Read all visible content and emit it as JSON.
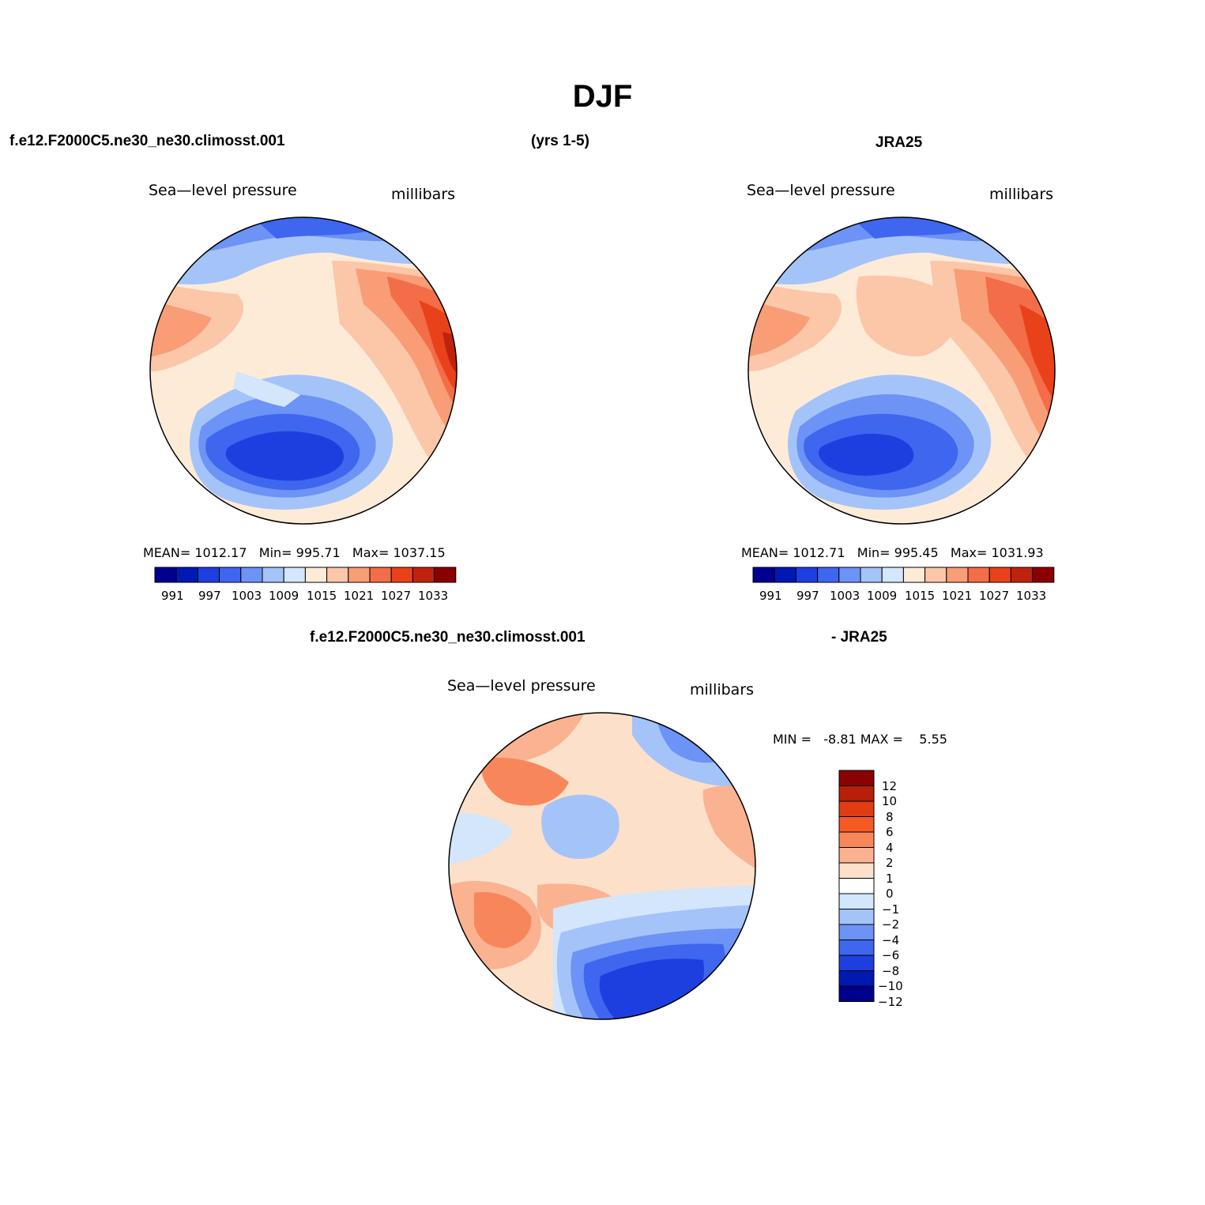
{
  "title": "DJF",
  "top_left_header": {
    "case": "f.e12.F2000C5.ne30_ne30.climosst.001",
    "years": "(yrs 1-5)"
  },
  "top_right_header": {
    "case": "JRA25"
  },
  "bottom_header": {
    "case": "f.e12.F2000C5.ne30_ne30.climosst.001",
    "suffix": "- JRA25"
  },
  "panels": [
    {
      "id": "model",
      "variable_label": "Sea—level pressure",
      "units_label": "millibars",
      "stats": {
        "mean_label": "MEAN=",
        "mean": "1012.17",
        "min_label": "Min=",
        "min": "995.71",
        "max_label": "Max=",
        "max": "1037.15"
      },
      "colorbar_ticks": [
        "991",
        "997",
        "1003",
        "1009",
        "1015",
        "1021",
        "1027",
        "1033"
      ]
    },
    {
      "id": "obs",
      "variable_label": "Sea—level pressure",
      "units_label": "millibars",
      "stats": {
        "mean_label": "MEAN=",
        "mean": "1012.71",
        "min_label": "Min=",
        "min": "995.45",
        "max_label": "Max=",
        "max": "1031.93"
      },
      "colorbar_ticks": [
        "991",
        "997",
        "1003",
        "1009",
        "1015",
        "1021",
        "1027",
        "1033"
      ]
    },
    {
      "id": "diff",
      "variable_label": "Sea—level pressure",
      "units_label": "millibars",
      "stats": {
        "min_label": "MIN =",
        "min": "-8.81",
        "max_label": "MAX =",
        "max": "5.55"
      },
      "colorbar_ticks": [
        "12",
        "10",
        "8",
        "6",
        "4",
        "2",
        "1",
        "0",
        "−1",
        "−2",
        "−4",
        "−6",
        "−8",
        "−10",
        "−12"
      ]
    }
  ],
  "colors": {
    "slp_scale": [
      "#00008f",
      "#0019b2",
      "#1e3fe0",
      "#3e66ef",
      "#6c93f5",
      "#a4c3f9",
      "#d3e6fb",
      "#fdebd8",
      "#fcc6a8",
      "#f89d76",
      "#f36d48",
      "#e9421b",
      "#c0230c",
      "#8b0000"
    ],
    "diff_scale": [
      "#8b0000",
      "#b81e08",
      "#e03d12",
      "#f55a22",
      "#f7875a",
      "#fbb291",
      "#fde0c9",
      "#ffffff",
      "#d3e6fb",
      "#a4c3f9",
      "#6c93f5",
      "#3e66ef",
      "#1e3fe0",
      "#0019b2",
      "#00008f"
    ]
  }
}
